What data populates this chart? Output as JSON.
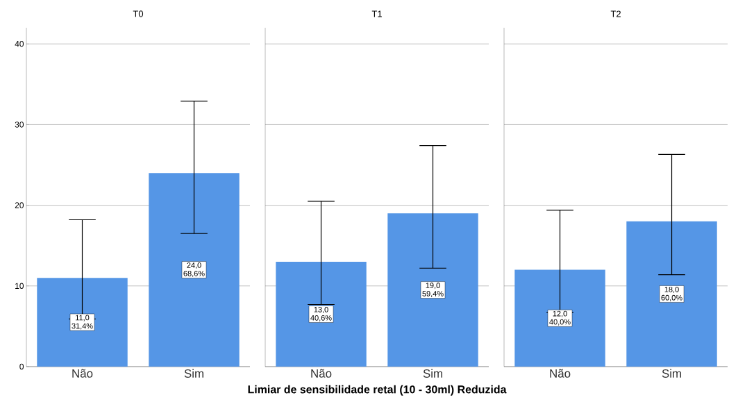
{
  "chart_data": [
    {
      "type": "bar",
      "title": "T0",
      "categories": [
        "Não",
        "Sim"
      ],
      "values": [
        11.0,
        24.0
      ],
      "errors": [
        [
          5.9,
          18.2
        ],
        [
          16.5,
          32.9
        ]
      ],
      "value_labels": [
        "11,0 31,4%",
        "24,0 68,6%"
      ],
      "color": "#5596e6",
      "ylim": [
        0,
        42
      ],
      "yticks": [
        0,
        10,
        20,
        30,
        40
      ],
      "grid": "y"
    },
    {
      "type": "bar",
      "title": "T1",
      "xlabel": "Limiar de sensibilidade retal (10 - 30ml) Reduzida",
      "categories": [
        "Não",
        "Sim"
      ],
      "values": [
        13.0,
        19.0
      ],
      "errors": [
        [
          7.7,
          20.5
        ],
        [
          12.2,
          27.4
        ]
      ],
      "value_labels": [
        "13,0 40,6%",
        "19,0 59,4%"
      ],
      "color": "#5596e6",
      "ylim": [
        0,
        42
      ],
      "yticks": [
        0,
        10,
        20,
        30,
        40
      ],
      "grid": "y",
      "tick_labels": "x"
    },
    {
      "type": "bar",
      "title": "T2",
      "categories": [
        "Não",
        "Sim"
      ],
      "values": [
        12.0,
        18.0
      ],
      "errors": [
        [
          6.7,
          19.4
        ],
        [
          11.4,
          26.3
        ]
      ],
      "value_labels": [
        "12,0 40,0%",
        "18,0 60,0%"
      ],
      "color": "#5596e6",
      "ylim": [
        0,
        42
      ],
      "yticks": [
        0,
        10,
        20,
        30,
        40
      ],
      "grid": "y",
      "tick_labels": "x"
    }
  ]
}
